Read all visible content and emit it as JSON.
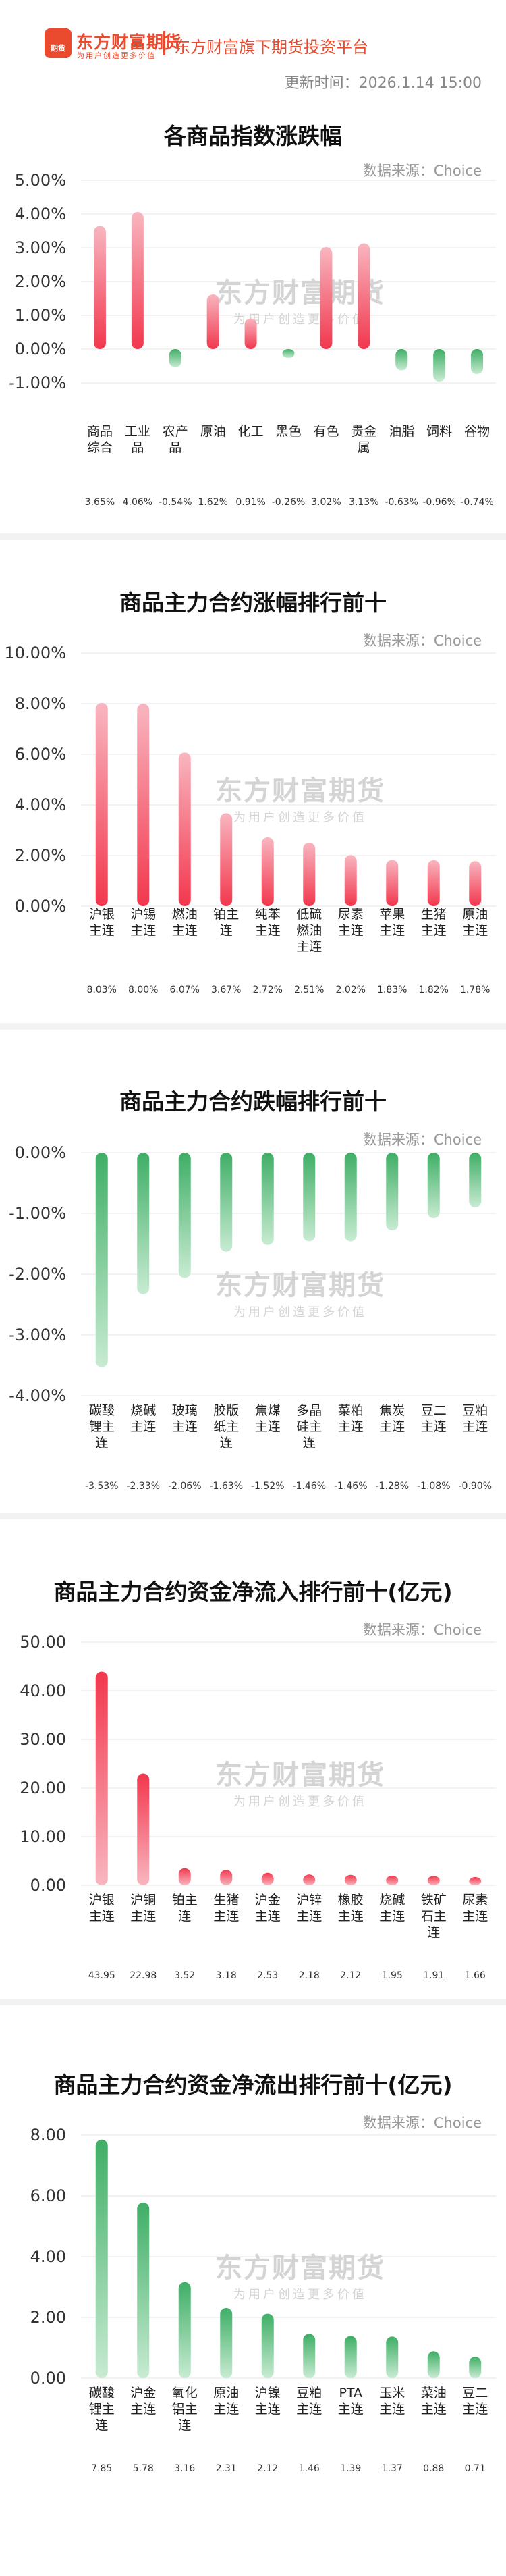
{
  "header": {
    "logo_label": "期货",
    "brand": "东方财富期货",
    "slogan": "为用户创造更多价值",
    "platform": "东方财富旗下期货投资平台",
    "update_time": "更新时间：2026.1.14 15:00"
  },
  "watermark": {
    "line1": "东方财富期货",
    "line2": "为用户创造更多价值"
  },
  "colors": {
    "up_top": "#f8b6c0",
    "up_bottom": "#f2374d",
    "down_top": "#3fae66",
    "down_bottom": "#c8ebd2",
    "inflow_top": "#f2374d",
    "inflow_bottom": "#f8b6c0",
    "outflow_top": "#3fae66",
    "outflow_bottom": "#c8ebd2"
  },
  "charts": [
    {
      "title": "各商品指数涨跌幅",
      "source": "数据来源：Choice",
      "chart_data": {
        "type": "bar",
        "categories": [
          "商品综合",
          "工业品",
          "农产品",
          "原油",
          "化工",
          "黑色",
          "有色",
          "贵金属",
          "油脂",
          "饲料",
          "谷物"
        ],
        "category_lines": [
          [
            "商品",
            "综合"
          ],
          [
            "工业",
            "品"
          ],
          [
            "农产",
            "品"
          ],
          [
            "原油"
          ],
          [
            "化工"
          ],
          [
            "黑色"
          ],
          [
            "有色"
          ],
          [
            "贵金",
            "属"
          ],
          [
            "油脂"
          ],
          [
            "饲料"
          ],
          [
            "谷物"
          ]
        ],
        "values": [
          3.65,
          4.06,
          -0.54,
          1.62,
          0.91,
          -0.26,
          3.02,
          3.13,
          -0.63,
          -0.96,
          -0.74
        ],
        "value_labels": [
          "3.65%",
          "4.06%",
          "-0.54%",
          "1.62%",
          "0.91%",
          "-0.26%",
          "3.02%",
          "3.13%",
          "-0.63%",
          "-0.96%",
          "-0.74%"
        ],
        "yticks": [
          "5.00%",
          "4.00%",
          "3.00%",
          "2.00%",
          "1.00%",
          "0.00%",
          "-1.00%"
        ],
        "ylim": [
          -1,
          5
        ]
      }
    },
    {
      "title": "商品主力合约涨幅排行前十",
      "source": "数据来源：Choice",
      "chart_data": {
        "type": "bar",
        "categories": [
          "沪银主连",
          "沪锡主连",
          "燃油主连",
          "铂主连",
          "纯苯主连",
          "低硫燃油主连",
          "尿素主连",
          "苹果主连",
          "生猪主连",
          "原油主连"
        ],
        "category_lines": [
          [
            "沪银",
            "主连"
          ],
          [
            "沪锡",
            "主连"
          ],
          [
            "燃油",
            "主连"
          ],
          [
            "铂主",
            "连"
          ],
          [
            "纯苯",
            "主连"
          ],
          [
            "低硫",
            "燃油",
            "主连"
          ],
          [
            "尿素",
            "主连"
          ],
          [
            "苹果",
            "主连"
          ],
          [
            "生猪",
            "主连"
          ],
          [
            "原油",
            "主连"
          ]
        ],
        "values": [
          8.03,
          8.0,
          6.07,
          3.67,
          2.72,
          2.51,
          2.02,
          1.83,
          1.82,
          1.78
        ],
        "value_labels": [
          "8.03%",
          "8.00%",
          "6.07%",
          "3.67%",
          "2.72%",
          "2.51%",
          "2.02%",
          "1.83%",
          "1.82%",
          "1.78%"
        ],
        "yticks": [
          "10.00%",
          "8.00%",
          "6.00%",
          "4.00%",
          "2.00%",
          "0.00%"
        ],
        "ylim": [
          0,
          10
        ]
      }
    },
    {
      "title": "商品主力合约跌幅排行前十",
      "source": "数据来源：Choice",
      "chart_data": {
        "type": "bar",
        "categories": [
          "碳酸锂主连",
          "烧碱主连",
          "玻璃主连",
          "胶版纸主连",
          "焦煤主连",
          "多晶硅主连",
          "菜粕主连",
          "焦炭主连",
          "豆二主连",
          "豆粕主连"
        ],
        "category_lines": [
          [
            "碳酸",
            "锂主",
            "连"
          ],
          [
            "烧碱",
            "主连"
          ],
          [
            "玻璃",
            "主连"
          ],
          [
            "胶版",
            "纸主",
            "连"
          ],
          [
            "焦煤",
            "主连"
          ],
          [
            "多晶",
            "硅主",
            "连"
          ],
          [
            "菜粕",
            "主连"
          ],
          [
            "焦炭",
            "主连"
          ],
          [
            "豆二",
            "主连"
          ],
          [
            "豆粕",
            "主连"
          ]
        ],
        "values": [
          -3.53,
          -2.33,
          -2.06,
          -1.63,
          -1.52,
          -1.46,
          -1.46,
          -1.28,
          -1.08,
          -0.9
        ],
        "value_labels": [
          "-3.53%",
          "-2.33%",
          "-2.06%",
          "-1.63%",
          "-1.52%",
          "-1.46%",
          "-1.46%",
          "-1.28%",
          "-1.08%",
          "-0.90%"
        ],
        "yticks": [
          "0.00%",
          "-1.00%",
          "-2.00%",
          "-3.00%",
          "-4.00%"
        ],
        "ylim": [
          -4,
          0
        ]
      }
    },
    {
      "title": "商品主力合约资金净流入排行前十(亿元)",
      "source": "数据来源：Choice",
      "chart_data": {
        "type": "bar",
        "categories": [
          "沪银主连",
          "沪铜主连",
          "铂主连",
          "生猪主连",
          "沪金主连",
          "沪锌主连",
          "橡胶主连",
          "烧碱主连",
          "铁矿石主连",
          "尿素主连"
        ],
        "category_lines": [
          [
            "沪银",
            "主连"
          ],
          [
            "沪铜",
            "主连"
          ],
          [
            "铂主",
            "连"
          ],
          [
            "生猪",
            "主连"
          ],
          [
            "沪金",
            "主连"
          ],
          [
            "沪锌",
            "主连"
          ],
          [
            "橡胶",
            "主连"
          ],
          [
            "烧碱",
            "主连"
          ],
          [
            "铁矿",
            "石主",
            "连"
          ],
          [
            "尿素",
            "主连"
          ]
        ],
        "values": [
          43.95,
          22.98,
          3.52,
          3.18,
          2.53,
          2.18,
          2.12,
          1.95,
          1.91,
          1.66
        ],
        "value_labels": [
          "43.95",
          "22.98",
          "3.52",
          "3.18",
          "2.53",
          "2.18",
          "2.12",
          "1.95",
          "1.91",
          "1.66"
        ],
        "yticks": [
          "50.00",
          "40.00",
          "30.00",
          "20.00",
          "10.00",
          "0.00"
        ],
        "ylim": [
          0,
          50
        ]
      }
    },
    {
      "title": "商品主力合约资金净流出排行前十(亿元)",
      "source": "数据来源：Choice",
      "chart_data": {
        "type": "bar",
        "categories": [
          "碳酸锂主连",
          "沪金主连",
          "氧化铝主连",
          "原油主连",
          "沪镍主连",
          "豆粕主连",
          "PTA主连",
          "玉米主连",
          "菜油主连",
          "豆二主连"
        ],
        "category_lines": [
          [
            "碳酸",
            "锂主",
            "连"
          ],
          [
            "沪金",
            "主连"
          ],
          [
            "氧化",
            "铝主",
            "连"
          ],
          [
            "原油",
            "主连"
          ],
          [
            "沪镍",
            "主连"
          ],
          [
            "豆粕",
            "主连"
          ],
          [
            "PTA",
            "主连"
          ],
          [
            "玉米",
            "主连"
          ],
          [
            "菜油",
            "主连"
          ],
          [
            "豆二",
            "主连"
          ]
        ],
        "values": [
          7.85,
          5.78,
          3.16,
          2.31,
          2.12,
          1.46,
          1.39,
          1.37,
          0.88,
          0.71
        ],
        "value_labels": [
          "7.85",
          "5.78",
          "3.16",
          "2.31",
          "2.12",
          "1.46",
          "1.39",
          "1.37",
          "0.88",
          "0.71"
        ],
        "yticks": [
          "8.00",
          "6.00",
          "4.00",
          "2.00",
          "0.00"
        ],
        "ylim": [
          0,
          8
        ]
      }
    }
  ]
}
